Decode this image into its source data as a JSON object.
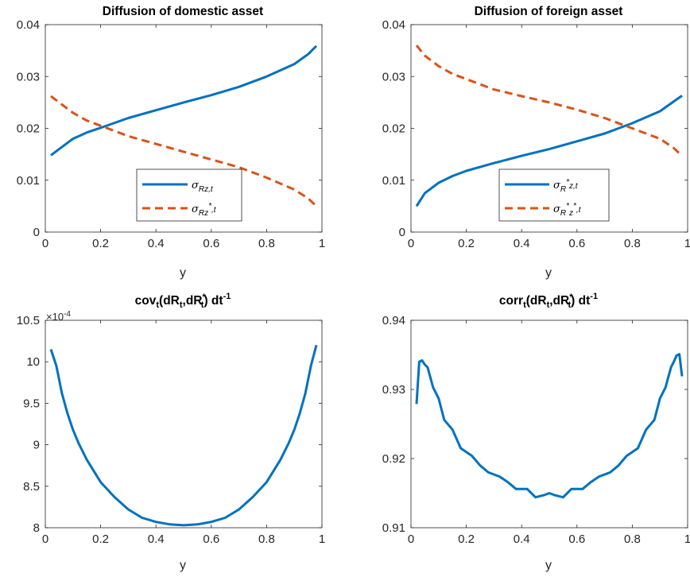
{
  "figure": {
    "series_colors": [
      "#0072BD",
      "#D95319"
    ]
  },
  "chart_data": [
    {
      "type": "line",
      "title": "Diffusion of domestic asset",
      "xlabel": "y",
      "ylabel": "",
      "xlim": [
        0,
        1
      ],
      "ylim": [
        0,
        0.04
      ],
      "xticks": [
        "0",
        "0.2",
        "0.4",
        "0.6",
        "0.8",
        "1"
      ],
      "yticks": [
        "0",
        "0.01",
        "0.02",
        "0.03",
        "0.04"
      ],
      "legend": {
        "location": "lower-center",
        "labels": [
          "σRz,t",
          "σRz*,t"
        ]
      },
      "x": [
        0.02,
        0.05,
        0.1,
        0.15,
        0.2,
        0.3,
        0.4,
        0.5,
        0.6,
        0.7,
        0.8,
        0.9,
        0.95,
        0.98
      ],
      "series": [
        {
          "name": "σRz,t",
          "style": "solid",
          "color": "#0072BD",
          "values": [
            0.0148,
            0.016,
            0.018,
            0.0192,
            0.0201,
            0.022,
            0.0235,
            0.025,
            0.0264,
            0.028,
            0.03,
            0.0324,
            0.0343,
            0.0359
          ]
        },
        {
          "name": "σRz*,t",
          "style": "dashed",
          "color": "#D95319",
          "values": [
            0.0262,
            0.025,
            0.023,
            0.0215,
            0.0205,
            0.0185,
            0.017,
            0.0155,
            0.014,
            0.0125,
            0.0105,
            0.0082,
            0.0065,
            0.005
          ]
        }
      ]
    },
    {
      "type": "line",
      "title": "Diffusion of foreign asset",
      "xlabel": "y",
      "ylabel": "",
      "xlim": [
        0,
        1
      ],
      "ylim": [
        0,
        0.04
      ],
      "xticks": [
        "0",
        "0.2",
        "0.4",
        "0.6",
        "0.8",
        "1"
      ],
      "yticks": [
        "0",
        "0.01",
        "0.02",
        "0.03",
        "0.04"
      ],
      "legend": {
        "location": "lower-center",
        "labels": [
          "σR*z,t",
          "σR*z*,t"
        ]
      },
      "x": [
        0.02,
        0.05,
        0.1,
        0.15,
        0.2,
        0.3,
        0.4,
        0.5,
        0.6,
        0.7,
        0.8,
        0.9,
        0.95,
        0.98
      ],
      "series": [
        {
          "name": "σR*z,t",
          "style": "solid",
          "color": "#0072BD",
          "values": [
            0.005,
            0.0075,
            0.0095,
            0.0108,
            0.0118,
            0.0133,
            0.0147,
            0.016,
            0.0175,
            0.019,
            0.021,
            0.0233,
            0.0252,
            0.0263
          ]
        },
        {
          "name": "σR*z*,t",
          "style": "dashed",
          "color": "#D95319",
          "values": [
            0.036,
            0.034,
            0.032,
            0.0305,
            0.0295,
            0.0275,
            0.0262,
            0.025,
            0.0236,
            0.022,
            0.02,
            0.018,
            0.0162,
            0.0147
          ]
        }
      ]
    },
    {
      "type": "line",
      "title": "cov(dR,dR*) dt-1",
      "title_parts": {
        "main": "cov",
        "sub1": "t",
        "mid1": "(dR",
        "sub2": "t",
        "mid2": ",dR",
        "sup3": "*",
        "sub3": "t",
        "mid3": ") dt",
        "sup4": "-1"
      },
      "xlabel": "y",
      "ylabel": "",
      "xlim": [
        0,
        1
      ],
      "ylim": [
        8,
        10.5
      ],
      "exponent_label": {
        "base": "×10",
        "power": "-4"
      },
      "xticks": [
        "0",
        "0.2",
        "0.4",
        "0.6",
        "0.8",
        "1"
      ],
      "yticks": [
        "8",
        "8.5",
        "9",
        "9.5",
        "10",
        "10.5"
      ],
      "x": [
        0.02,
        0.04,
        0.06,
        0.08,
        0.1,
        0.12,
        0.15,
        0.2,
        0.25,
        0.3,
        0.35,
        0.4,
        0.45,
        0.5,
        0.55,
        0.6,
        0.65,
        0.7,
        0.75,
        0.8,
        0.85,
        0.88,
        0.9,
        0.92,
        0.94,
        0.96,
        0.98
      ],
      "series": [
        {
          "name": "",
          "style": "solid",
          "color": "#0072BD",
          "values": [
            10.15,
            9.95,
            9.62,
            9.38,
            9.18,
            9.02,
            8.82,
            8.55,
            8.37,
            8.22,
            8.12,
            8.07,
            8.04,
            8.03,
            8.04,
            8.07,
            8.12,
            8.22,
            8.37,
            8.55,
            8.82,
            9.02,
            9.18,
            9.38,
            9.62,
            9.95,
            10.2
          ]
        }
      ]
    },
    {
      "type": "line",
      "title": "corr(dR,dR*) dt-1",
      "title_parts": {
        "main": "corr",
        "sub1": "t",
        "mid1": "(dR",
        "sub2": "t",
        "mid2": ",dR",
        "sup3": "*",
        "sub3": "t",
        "mid3": ") dt",
        "sup4": "-1"
      },
      "xlabel": "y",
      "ylabel": "",
      "xlim": [
        0,
        1
      ],
      "ylim": [
        0.91,
        0.94
      ],
      "xticks": [
        "0",
        "0.2",
        "0.4",
        "0.6",
        "0.8",
        "1"
      ],
      "yticks": [
        "0.91",
        "0.92",
        "0.93",
        "0.94"
      ],
      "x": [
        0.02,
        0.03,
        0.04,
        0.05,
        0.06,
        0.08,
        0.1,
        0.12,
        0.15,
        0.18,
        0.22,
        0.25,
        0.28,
        0.32,
        0.35,
        0.38,
        0.42,
        0.45,
        0.48,
        0.5,
        0.52,
        0.55,
        0.58,
        0.62,
        0.65,
        0.68,
        0.72,
        0.75,
        0.78,
        0.82,
        0.85,
        0.88,
        0.9,
        0.92,
        0.94,
        0.95,
        0.96,
        0.97,
        0.98
      ],
      "series": [
        {
          "name": "",
          "style": "solid",
          "color": "#0072BD",
          "values": [
            0.9279,
            0.934,
            0.9342,
            0.9336,
            0.9332,
            0.9303,
            0.9287,
            0.9256,
            0.9242,
            0.9215,
            0.9204,
            0.919,
            0.918,
            0.9174,
            0.9166,
            0.9156,
            0.9156,
            0.9144,
            0.9147,
            0.915,
            0.9147,
            0.9144,
            0.9156,
            0.9156,
            0.9166,
            0.9174,
            0.918,
            0.919,
            0.9204,
            0.9215,
            0.9242,
            0.9256,
            0.9287,
            0.9303,
            0.9332,
            0.934,
            0.9349,
            0.9351,
            0.9319
          ]
        }
      ]
    }
  ]
}
